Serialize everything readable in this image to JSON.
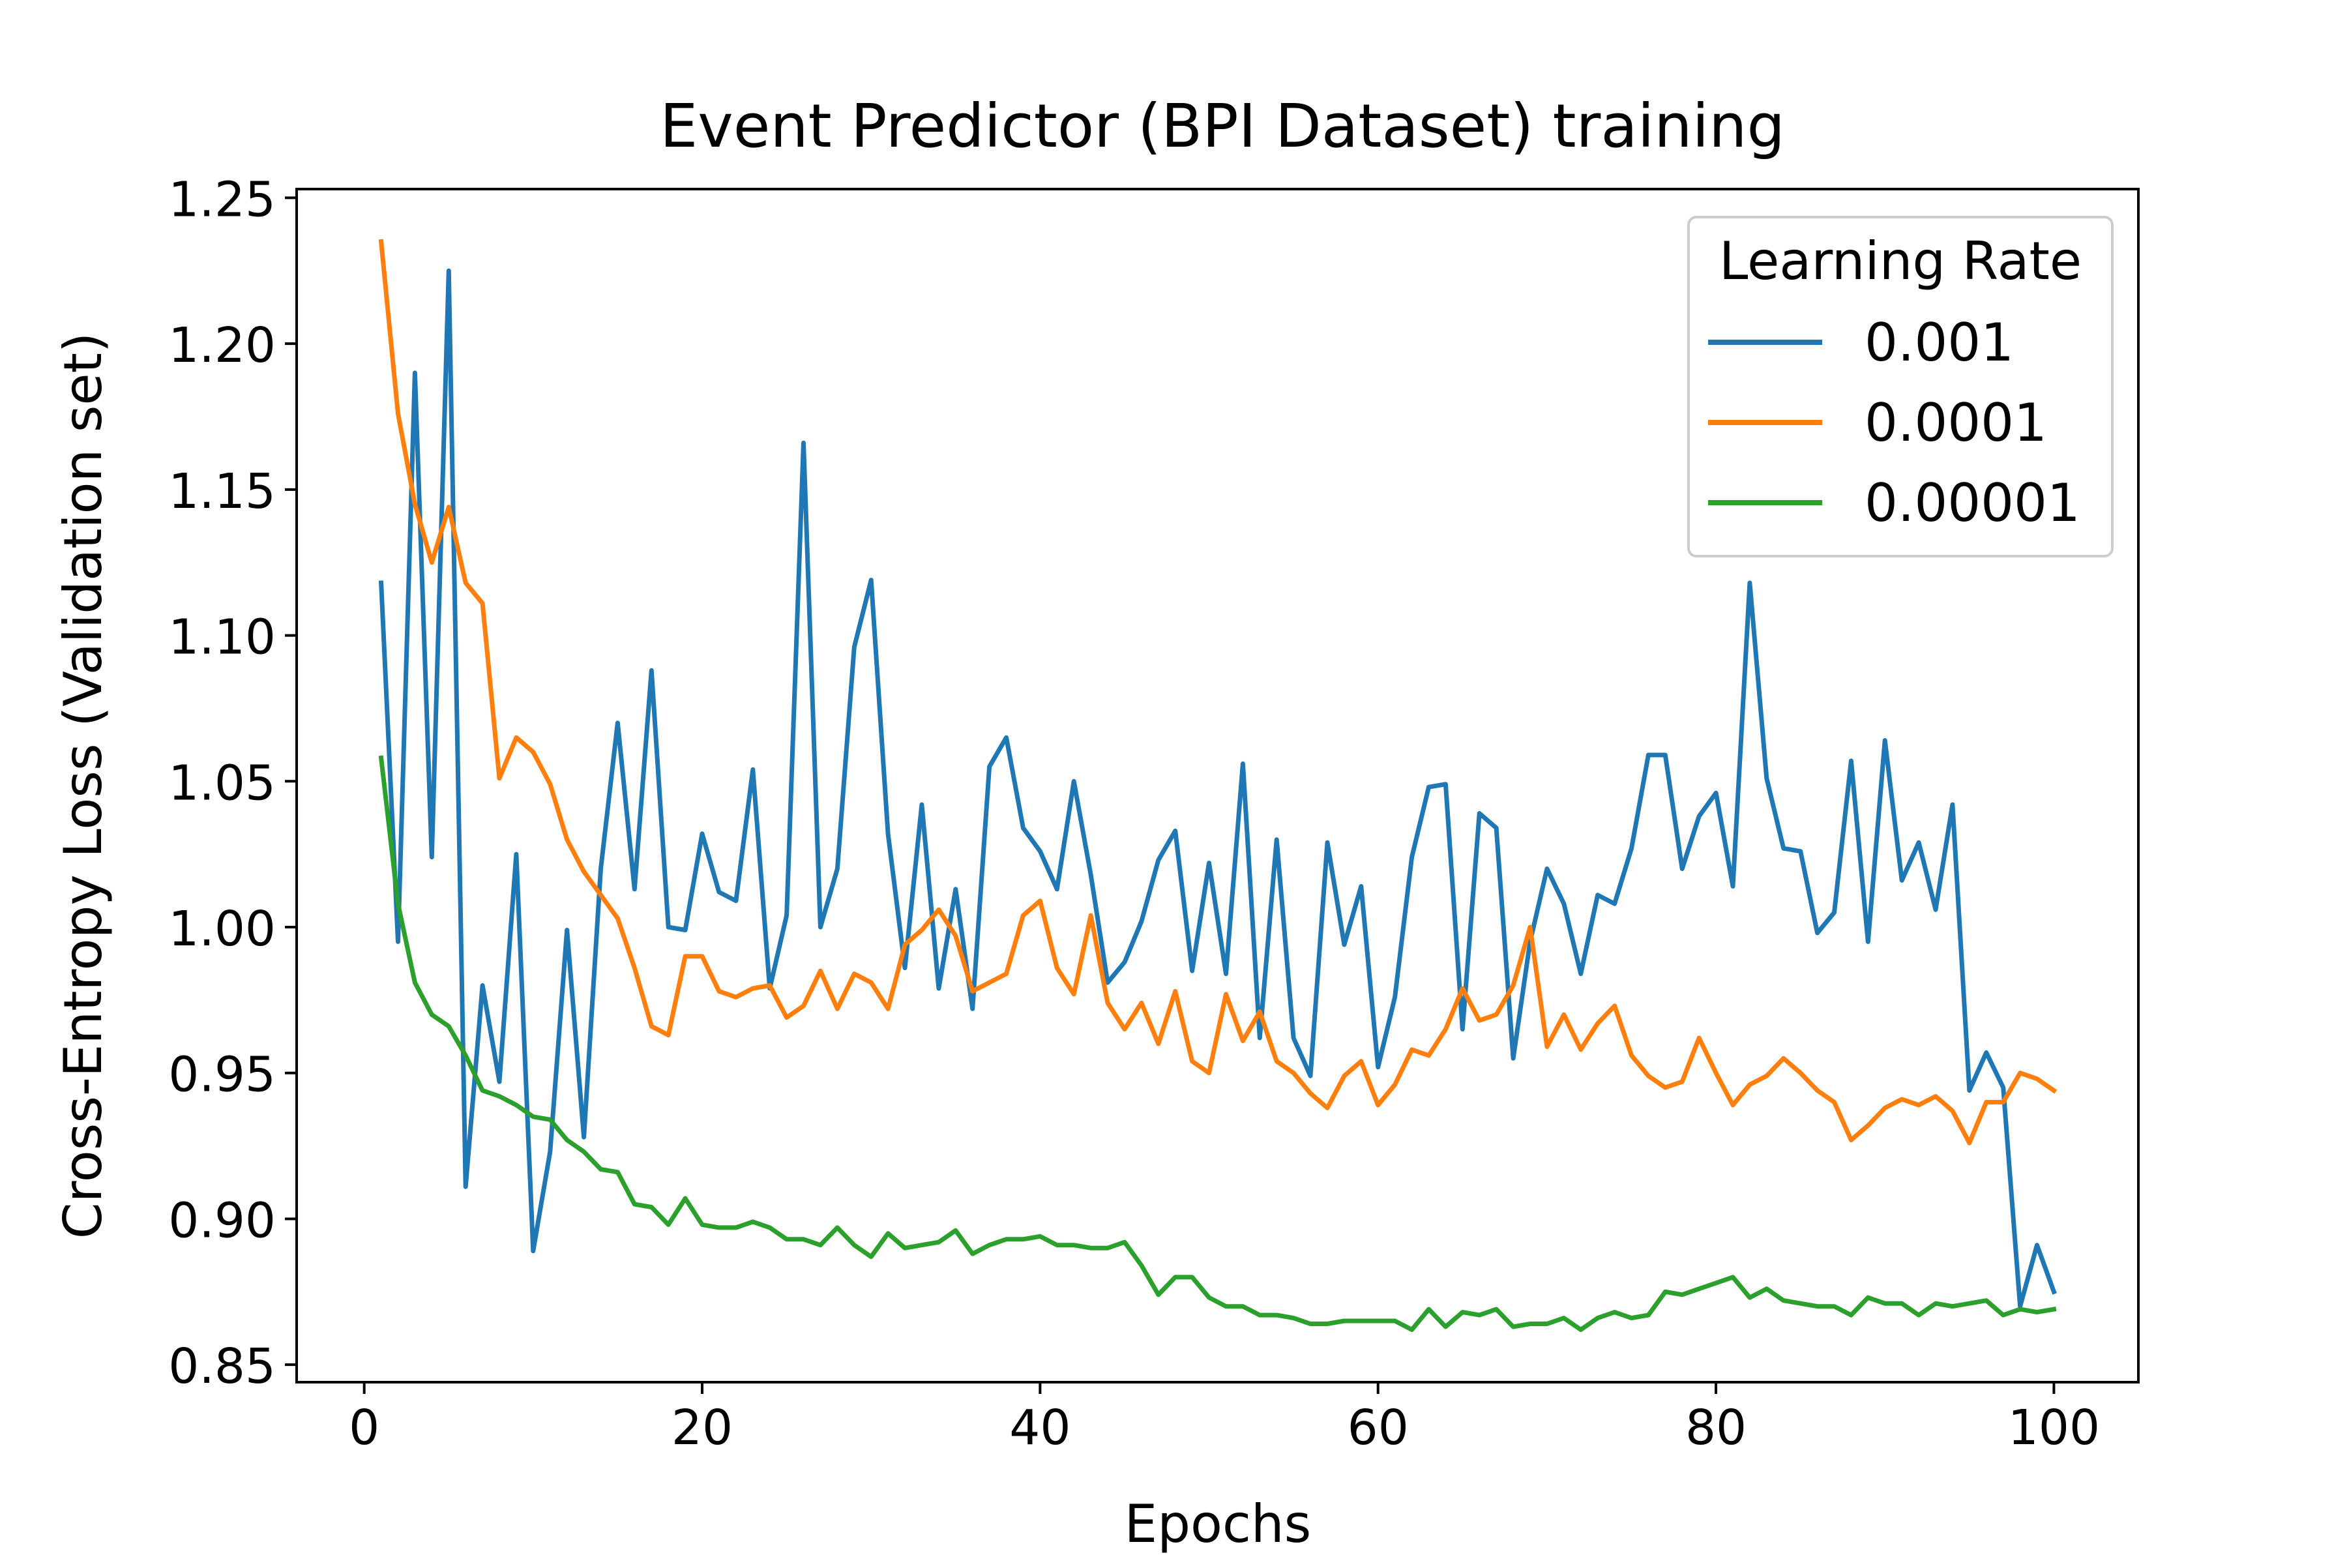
{
  "chart_data": {
    "type": "line",
    "title": "Event Predictor (BPI Dataset) training",
    "xlabel": "Epochs",
    "ylabel": "Cross-Entropy Loss (Validation set)",
    "xlim": [
      -4,
      105
    ],
    "ylim": [
      0.844,
      1.253
    ],
    "x_ticks": [
      0,
      20,
      40,
      60,
      80,
      100
    ],
    "x_tick_labels": [
      "0",
      "20",
      "40",
      "60",
      "80",
      "100"
    ],
    "y_ticks": [
      0.85,
      0.9,
      0.95,
      1.0,
      1.05,
      1.1,
      1.15,
      1.2,
      1.25
    ],
    "y_tick_labels": [
      "0.85",
      "0.90",
      "0.95",
      "1.00",
      "1.05",
      "1.10",
      "1.15",
      "1.20",
      "1.25"
    ],
    "grid": false,
    "legend": {
      "title": "Learning Rate",
      "position": "top-right"
    },
    "x": [
      1,
      2,
      3,
      4,
      5,
      6,
      7,
      8,
      9,
      10,
      11,
      12,
      13,
      14,
      15,
      16,
      17,
      18,
      19,
      20,
      21,
      22,
      23,
      24,
      25,
      26,
      27,
      28,
      29,
      30,
      31,
      32,
      33,
      34,
      35,
      36,
      37,
      38,
      39,
      40,
      41,
      42,
      43,
      44,
      45,
      46,
      47,
      48,
      49,
      50,
      51,
      52,
      53,
      54,
      55,
      56,
      57,
      58,
      59,
      60,
      61,
      62,
      63,
      64,
      65,
      66,
      67,
      68,
      69,
      70,
      71,
      72,
      73,
      74,
      75,
      76,
      77,
      78,
      79,
      80,
      81,
      82,
      83,
      84,
      85,
      86,
      87,
      88,
      89,
      90,
      91,
      92,
      93,
      94,
      95,
      96,
      97,
      98,
      99,
      100
    ],
    "series": [
      {
        "name": "0.001",
        "color": "#1f77b4",
        "values": [
          1.118,
          0.995,
          1.19,
          1.024,
          1.225,
          0.911,
          0.98,
          0.947,
          1.025,
          0.889,
          0.923,
          0.999,
          0.928,
          1.02,
          1.07,
          1.013,
          1.088,
          1.0,
          0.999,
          1.032,
          1.012,
          1.009,
          1.054,
          0.979,
          1.004,
          1.166,
          1.0,
          1.02,
          1.096,
          1.119,
          1.032,
          0.986,
          1.042,
          0.979,
          1.013,
          0.972,
          1.055,
          1.065,
          1.034,
          1.026,
          1.013,
          1.05,
          1.018,
          0.981,
          0.988,
          1.002,
          1.023,
          1.033,
          0.985,
          1.022,
          0.984,
          1.056,
          0.962,
          1.03,
          0.962,
          0.949,
          1.029,
          0.994,
          1.014,
          0.952,
          0.976,
          1.024,
          1.048,
          1.049,
          0.965,
          1.039,
          1.034,
          0.955,
          0.995,
          1.02,
          1.008,
          0.984,
          1.011,
          1.008,
          1.027,
          1.059,
          1.059,
          1.02,
          1.038,
          1.046,
          1.014,
          1.118,
          1.051,
          1.027,
          1.026,
          0.998,
          1.005,
          1.057,
          0.995,
          1.064,
          1.016,
          1.029,
          1.006,
          1.042,
          0.944,
          0.957,
          0.945,
          0.87,
          0.891,
          0.875
        ]
      },
      {
        "name": "0.0001",
        "color": "#ff7f0e",
        "values": [
          1.235,
          1.176,
          1.145,
          1.125,
          1.144,
          1.118,
          1.111,
          1.051,
          1.065,
          1.06,
          1.049,
          1.03,
          1.019,
          1.011,
          1.003,
          0.986,
          0.966,
          0.963,
          0.99,
          0.99,
          0.978,
          0.976,
          0.979,
          0.98,
          0.969,
          0.973,
          0.985,
          0.972,
          0.984,
          0.981,
          0.972,
          0.994,
          0.999,
          1.006,
          0.997,
          0.978,
          0.981,
          0.984,
          1.004,
          1.009,
          0.986,
          0.977,
          1.004,
          0.974,
          0.965,
          0.974,
          0.96,
          0.978,
          0.954,
          0.95,
          0.977,
          0.961,
          0.971,
          0.954,
          0.95,
          0.943,
          0.938,
          0.949,
          0.954,
          0.939,
          0.946,
          0.958,
          0.956,
          0.965,
          0.979,
          0.968,
          0.97,
          0.98,
          1.0,
          0.959,
          0.97,
          0.958,
          0.967,
          0.973,
          0.956,
          0.949,
          0.945,
          0.947,
          0.962,
          0.95,
          0.939,
          0.946,
          0.949,
          0.955,
          0.95,
          0.944,
          0.94,
          0.927,
          0.932,
          0.938,
          0.941,
          0.939,
          0.942,
          0.937,
          0.926,
          0.94,
          0.94,
          0.95,
          0.948,
          0.944
        ]
      },
      {
        "name": "0.00001",
        "color": "#2ca02c",
        "values": [
          1.058,
          1.008,
          0.981,
          0.97,
          0.966,
          0.956,
          0.944,
          0.942,
          0.939,
          0.935,
          0.934,
          0.927,
          0.923,
          0.917,
          0.916,
          0.905,
          0.904,
          0.898,
          0.907,
          0.898,
          0.897,
          0.897,
          0.899,
          0.897,
          0.893,
          0.893,
          0.891,
          0.897,
          0.891,
          0.887,
          0.895,
          0.89,
          0.891,
          0.892,
          0.896,
          0.888,
          0.891,
          0.893,
          0.893,
          0.894,
          0.891,
          0.891,
          0.89,
          0.89,
          0.892,
          0.884,
          0.874,
          0.88,
          0.88,
          0.873,
          0.87,
          0.87,
          0.867,
          0.867,
          0.866,
          0.864,
          0.864,
          0.865,
          0.865,
          0.865,
          0.865,
          0.862,
          0.869,
          0.863,
          0.868,
          0.867,
          0.869,
          0.863,
          0.864,
          0.864,
          0.866,
          0.862,
          0.866,
          0.868,
          0.866,
          0.867,
          0.875,
          0.874,
          0.876,
          0.878,
          0.88,
          0.873,
          0.876,
          0.872,
          0.871,
          0.87,
          0.87,
          0.867,
          0.873,
          0.871,
          0.871,
          0.867,
          0.871,
          0.87,
          0.871,
          0.872,
          0.867,
          0.869,
          0.868,
          0.869
        ]
      }
    ]
  }
}
